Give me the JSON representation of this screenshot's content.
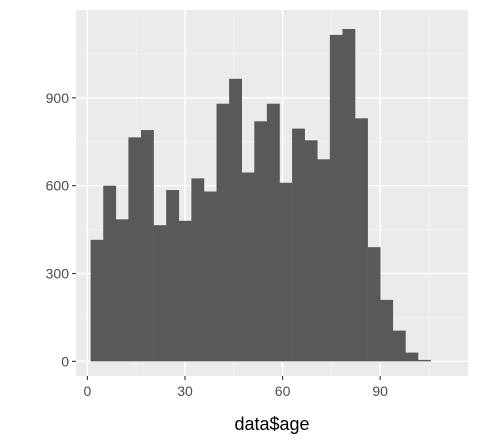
{
  "chart_data": {
    "type": "bar",
    "subtype": "histogram",
    "title": "",
    "xlabel": "data$age",
    "ylabel": "",
    "xlim": [
      -3.5,
      117
    ],
    "ylim": [
      -50,
      1200
    ],
    "x_ticks": [
      0,
      30,
      60,
      90
    ],
    "y_ticks": [
      0,
      300,
      600,
      900
    ],
    "x_minor": [
      15,
      45,
      75,
      105
    ],
    "y_minor": [
      150,
      450,
      750,
      1050
    ],
    "grid": true,
    "legend": "none",
    "bin_width": 3.87,
    "bins": [
      {
        "x0": 1.0,
        "x1": 4.87,
        "count": 415
      },
      {
        "x0": 4.87,
        "x1": 8.74,
        "count": 600
      },
      {
        "x0": 8.74,
        "x1": 12.61,
        "count": 485
      },
      {
        "x0": 12.61,
        "x1": 16.48,
        "count": 765
      },
      {
        "x0": 16.48,
        "x1": 20.35,
        "count": 790
      },
      {
        "x0": 20.35,
        "x1": 24.22,
        "count": 465
      },
      {
        "x0": 24.22,
        "x1": 28.09,
        "count": 585
      },
      {
        "x0": 28.09,
        "x1": 31.96,
        "count": 480
      },
      {
        "x0": 31.96,
        "x1": 35.83,
        "count": 625
      },
      {
        "x0": 35.83,
        "x1": 39.7,
        "count": 580
      },
      {
        "x0": 39.7,
        "x1": 43.57,
        "count": 880
      },
      {
        "x0": 43.57,
        "x1": 47.44,
        "count": 965
      },
      {
        "x0": 47.44,
        "x1": 51.31,
        "count": 645
      },
      {
        "x0": 51.31,
        "x1": 55.18,
        "count": 820
      },
      {
        "x0": 55.18,
        "x1": 59.05,
        "count": 880
      },
      {
        "x0": 59.05,
        "x1": 62.92,
        "count": 610
      },
      {
        "x0": 62.92,
        "x1": 66.79,
        "count": 795
      },
      {
        "x0": 66.79,
        "x1": 70.66,
        "count": 755
      },
      {
        "x0": 70.66,
        "x1": 74.53,
        "count": 690
      },
      {
        "x0": 74.53,
        "x1": 78.4,
        "count": 1115
      },
      {
        "x0": 78.4,
        "x1": 82.27,
        "count": 1135
      },
      {
        "x0": 82.27,
        "x1": 86.14,
        "count": 830
      },
      {
        "x0": 86.14,
        "x1": 90.01,
        "count": 390
      },
      {
        "x0": 90.01,
        "x1": 93.88,
        "count": 210
      },
      {
        "x0": 93.88,
        "x1": 97.75,
        "count": 105
      },
      {
        "x0": 97.75,
        "x1": 101.62,
        "count": 30
      },
      {
        "x0": 101.62,
        "x1": 105.49,
        "count": 5
      }
    ],
    "colors": {
      "panel": "#ebebeb",
      "bar": "#595959",
      "grid": "#ffffff"
    }
  }
}
